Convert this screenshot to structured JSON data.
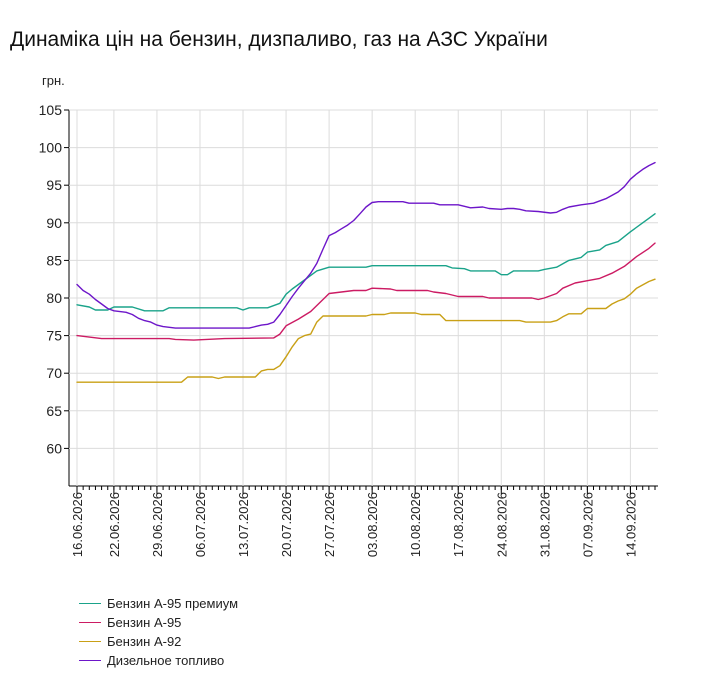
{
  "title": "Динаміка цін на бензин, дизпаливо, газ на АЗС України",
  "chart_data": {
    "type": "line",
    "title": "Динаміка цін на бензин, дизпаливо, газ на АЗС України",
    "ylabel": "грн.",
    "xlabel": "",
    "ylim": [
      55,
      105
    ],
    "yticks": [
      60,
      65,
      70,
      75,
      80,
      85,
      90,
      95,
      100,
      105
    ],
    "grid": true,
    "legend_position": "bottom-left",
    "x_start": "16.06.2026",
    "x_end": "20.09.2026",
    "x_tick_labels": [
      "16.06.2026",
      "22.06.2026",
      "29.06.2026",
      "06.07.2026",
      "13.07.2026",
      "20.07.2026",
      "27.07.2026",
      "03.08.2026",
      "10.08.2026",
      "17.08.2026",
      "24.08.2026",
      "31.08.2026",
      "07.09.2026",
      "14.09.2026"
    ],
    "series": [
      {
        "name": "Бензин А-95 премиум",
        "color": "#1aa38a",
        "points": [
          [
            "16.06.2026",
            79.1
          ],
          [
            "18.06.2026",
            78.8
          ],
          [
            "19.06.2026",
            78.4
          ],
          [
            "21.06.2026",
            78.4
          ],
          [
            "22.06.2026",
            78.8
          ],
          [
            "25.06.2026",
            78.8
          ],
          [
            "27.06.2026",
            78.3
          ],
          [
            "30.06.2026",
            78.3
          ],
          [
            "01.07.2026",
            78.7
          ],
          [
            "12.07.2026",
            78.7
          ],
          [
            "13.07.2026",
            78.4
          ],
          [
            "14.07.2026",
            78.7
          ],
          [
            "17.07.2026",
            78.7
          ],
          [
            "19.07.2026",
            79.3
          ],
          [
            "20.07.2026",
            80.5
          ],
          [
            "21.07.2026",
            81.2
          ],
          [
            "22.07.2026",
            81.8
          ],
          [
            "23.07.2026",
            82.4
          ],
          [
            "24.07.2026",
            83.0
          ],
          [
            "25.07.2026",
            83.6
          ],
          [
            "27.07.2026",
            84.1
          ],
          [
            "02.08.2026",
            84.1
          ],
          [
            "03.08.2026",
            84.3
          ],
          [
            "15.08.2026",
            84.3
          ],
          [
            "16.08.2026",
            84.0
          ],
          [
            "18.08.2026",
            83.9
          ],
          [
            "19.08.2026",
            83.6
          ],
          [
            "23.08.2026",
            83.6
          ],
          [
            "24.08.2026",
            83.1
          ],
          [
            "25.08.2026",
            83.1
          ],
          [
            "26.08.2026",
            83.6
          ],
          [
            "30.08.2026",
            83.6
          ],
          [
            "31.08.2026",
            83.8
          ],
          [
            "02.09.2026",
            84.1
          ],
          [
            "04.09.2026",
            85.0
          ],
          [
            "06.09.2026",
            85.4
          ],
          [
            "07.09.2026",
            86.1
          ],
          [
            "09.09.2026",
            86.4
          ],
          [
            "10.09.2026",
            87.0
          ],
          [
            "12.09.2026",
            87.5
          ],
          [
            "14.09.2026",
            88.8
          ],
          [
            "16.09.2026",
            90.0
          ],
          [
            "17.09.2026",
            90.6
          ],
          [
            "18.09.2026",
            91.2
          ]
        ]
      },
      {
        "name": "Бензин А-95",
        "color": "#cc1b63",
        "points": [
          [
            "16.06.2026",
            75.0
          ],
          [
            "18.06.2026",
            74.8
          ],
          [
            "20.06.2026",
            74.6
          ],
          [
            "01.07.2026",
            74.6
          ],
          [
            "02.07.2026",
            74.5
          ],
          [
            "05.07.2026",
            74.4
          ],
          [
            "10.07.2026",
            74.6
          ],
          [
            "18.07.2026",
            74.7
          ],
          [
            "19.07.2026",
            75.2
          ],
          [
            "20.07.2026",
            76.3
          ],
          [
            "22.07.2026",
            77.2
          ],
          [
            "24.07.2026",
            78.2
          ],
          [
            "26.07.2026",
            79.8
          ],
          [
            "27.07.2026",
            80.6
          ],
          [
            "29.07.2026",
            80.8
          ],
          [
            "31.07.2026",
            81.0
          ],
          [
            "02.08.2026",
            81.0
          ],
          [
            "03.08.2026",
            81.3
          ],
          [
            "06.08.2026",
            81.2
          ],
          [
            "07.08.2026",
            81.0
          ],
          [
            "12.08.2026",
            81.0
          ],
          [
            "13.08.2026",
            80.8
          ],
          [
            "15.08.2026",
            80.6
          ],
          [
            "16.08.2026",
            80.4
          ],
          [
            "17.08.2026",
            80.2
          ],
          [
            "21.08.2026",
            80.2
          ],
          [
            "22.08.2026",
            80.0
          ],
          [
            "29.08.2026",
            80.0
          ],
          [
            "30.08.2026",
            79.8
          ],
          [
            "31.08.2026",
            80.0
          ],
          [
            "02.09.2026",
            80.6
          ],
          [
            "03.09.2026",
            81.3
          ],
          [
            "05.09.2026",
            82.0
          ],
          [
            "07.09.2026",
            82.3
          ],
          [
            "09.09.2026",
            82.6
          ],
          [
            "11.09.2026",
            83.3
          ],
          [
            "13.09.2026",
            84.2
          ],
          [
            "15.09.2026",
            85.5
          ],
          [
            "17.09.2026",
            86.6
          ],
          [
            "18.09.2026",
            87.3
          ]
        ]
      },
      {
        "name": "Бензин А-92",
        "color": "#c9a016",
        "points": [
          [
            "16.06.2026",
            68.8
          ],
          [
            "03.07.2026",
            68.8
          ],
          [
            "04.07.2026",
            69.5
          ],
          [
            "08.07.2026",
            69.5
          ],
          [
            "09.07.2026",
            69.3
          ],
          [
            "10.07.2026",
            69.5
          ],
          [
            "15.07.2026",
            69.5
          ],
          [
            "16.07.2026",
            70.3
          ],
          [
            "17.07.2026",
            70.5
          ],
          [
            "18.07.2026",
            70.5
          ],
          [
            "19.07.2026",
            71.0
          ],
          [
            "20.07.2026",
            72.2
          ],
          [
            "21.07.2026",
            73.5
          ],
          [
            "22.07.2026",
            74.6
          ],
          [
            "23.07.2026",
            75.0
          ],
          [
            "24.07.2026",
            75.2
          ],
          [
            "25.07.2026",
            76.8
          ],
          [
            "26.07.2026",
            77.6
          ],
          [
            "02.08.2026",
            77.6
          ],
          [
            "03.08.2026",
            77.8
          ],
          [
            "05.08.2026",
            77.8
          ],
          [
            "06.08.2026",
            78.0
          ],
          [
            "10.08.2026",
            78.0
          ],
          [
            "11.08.2026",
            77.8
          ],
          [
            "14.08.2026",
            77.8
          ],
          [
            "15.08.2026",
            77.0
          ],
          [
            "27.08.2026",
            77.0
          ],
          [
            "28.08.2026",
            76.8
          ],
          [
            "01.09.2026",
            76.8
          ],
          [
            "02.09.2026",
            77.0
          ],
          [
            "03.09.2026",
            77.5
          ],
          [
            "04.09.2026",
            77.9
          ],
          [
            "06.09.2026",
            77.9
          ],
          [
            "07.09.2026",
            78.6
          ],
          [
            "10.09.2026",
            78.6
          ],
          [
            "11.09.2026",
            79.2
          ],
          [
            "12.09.2026",
            79.6
          ],
          [
            "13.09.2026",
            79.9
          ],
          [
            "14.09.2026",
            80.5
          ],
          [
            "15.09.2026",
            81.3
          ],
          [
            "17.09.2026",
            82.2
          ],
          [
            "18.09.2026",
            82.5
          ]
        ]
      },
      {
        "name": "Дизельное топливо",
        "color": "#6d16c9",
        "points": [
          [
            "16.06.2026",
            81.8
          ],
          [
            "17.06.2026",
            81.0
          ],
          [
            "18.06.2026",
            80.5
          ],
          [
            "19.06.2026",
            79.8
          ],
          [
            "20.06.2026",
            79.2
          ],
          [
            "21.06.2026",
            78.6
          ],
          [
            "22.06.2026",
            78.3
          ],
          [
            "24.06.2026",
            78.1
          ],
          [
            "25.06.2026",
            77.8
          ],
          [
            "26.06.2026",
            77.3
          ],
          [
            "27.06.2026",
            77.0
          ],
          [
            "28.06.2026",
            76.8
          ],
          [
            "29.06.2026",
            76.4
          ],
          [
            "30.06.2026",
            76.2
          ],
          [
            "02.07.2026",
            76.0
          ],
          [
            "14.07.2026",
            76.0
          ],
          [
            "15.07.2026",
            76.2
          ],
          [
            "16.07.2026",
            76.4
          ],
          [
            "17.07.2026",
            76.5
          ],
          [
            "18.07.2026",
            76.8
          ],
          [
            "19.07.2026",
            77.8
          ],
          [
            "20.07.2026",
            79.0
          ],
          [
            "21.07.2026",
            80.2
          ],
          [
            "22.07.2026",
            81.3
          ],
          [
            "23.07.2026",
            82.3
          ],
          [
            "24.07.2026",
            83.3
          ],
          [
            "25.07.2026",
            84.6
          ],
          [
            "26.07.2026",
            86.5
          ],
          [
            "27.07.2026",
            88.3
          ],
          [
            "28.07.2026",
            88.7
          ],
          [
            "29.07.2026",
            89.2
          ],
          [
            "30.07.2026",
            89.7
          ],
          [
            "31.07.2026",
            90.3
          ],
          [
            "01.08.2026",
            91.2
          ],
          [
            "02.08.2026",
            92.1
          ],
          [
            "03.08.2026",
            92.7
          ],
          [
            "04.08.2026",
            92.8
          ],
          [
            "08.08.2026",
            92.8
          ],
          [
            "09.08.2026",
            92.6
          ],
          [
            "13.08.2026",
            92.6
          ],
          [
            "14.08.2026",
            92.4
          ],
          [
            "17.08.2026",
            92.4
          ],
          [
            "18.08.2026",
            92.2
          ],
          [
            "19.08.2026",
            92.0
          ],
          [
            "21.08.2026",
            92.1
          ],
          [
            "22.08.2026",
            91.9
          ],
          [
            "24.08.2026",
            91.8
          ],
          [
            "25.08.2026",
            91.9
          ],
          [
            "26.08.2026",
            91.9
          ],
          [
            "27.08.2026",
            91.8
          ],
          [
            "28.08.2026",
            91.6
          ],
          [
            "30.08.2026",
            91.5
          ],
          [
            "01.09.2026",
            91.3
          ],
          [
            "02.09.2026",
            91.4
          ],
          [
            "03.09.2026",
            91.8
          ],
          [
            "04.09.2026",
            92.1
          ],
          [
            "06.09.2026",
            92.4
          ],
          [
            "08.09.2026",
            92.6
          ],
          [
            "10.09.2026",
            93.2
          ],
          [
            "12.09.2026",
            94.1
          ],
          [
            "13.09.2026",
            94.8
          ],
          [
            "14.09.2026",
            95.8
          ],
          [
            "15.09.2026",
            96.5
          ],
          [
            "16.09.2026",
            97.1
          ],
          [
            "17.09.2026",
            97.6
          ],
          [
            "18.09.2026",
            98.0
          ]
        ]
      }
    ]
  }
}
